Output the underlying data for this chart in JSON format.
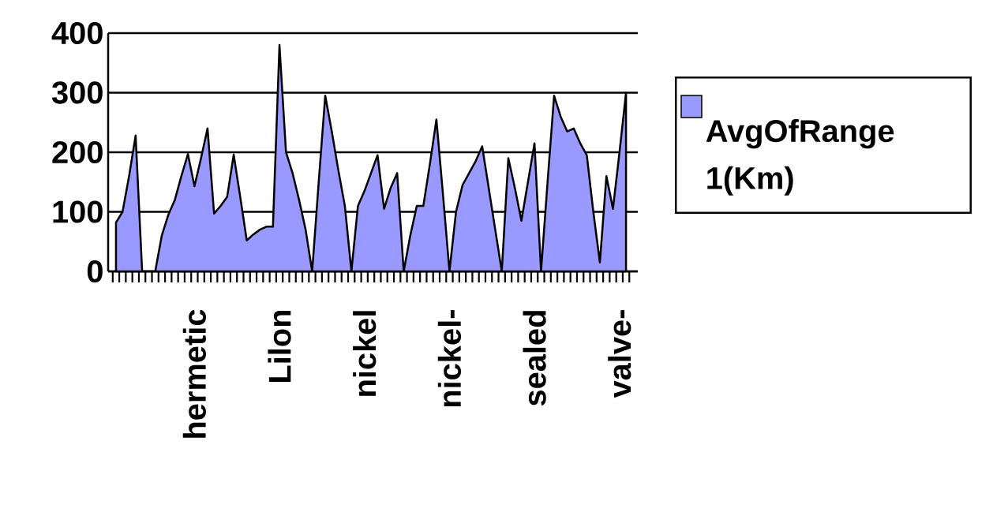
{
  "chart_data": {
    "type": "area",
    "categories": [
      null,
      null,
      null,
      null,
      null,
      null,
      null,
      null,
      null,
      null,
      null,
      null,
      "hermetic",
      null,
      null,
      null,
      null,
      null,
      null,
      null,
      null,
      null,
      null,
      null,
      null,
      "Lilon",
      null,
      null,
      null,
      null,
      null,
      null,
      null,
      null,
      null,
      null,
      null,
      null,
      "nickel",
      null,
      null,
      null,
      null,
      null,
      null,
      null,
      null,
      null,
      null,
      null,
      null,
      "nickel-",
      null,
      null,
      null,
      null,
      null,
      null,
      null,
      null,
      null,
      null,
      null,
      null,
      "sealed",
      null,
      null,
      null,
      null,
      null,
      null,
      null,
      null,
      null,
      null,
      null,
      null,
      "valve-",
      null
    ],
    "series": [
      {
        "name": "AvgOfRange 1(Km)",
        "color": "#9999ff",
        "values": [
          82,
          100,
          160,
          228,
          0,
          0,
          0,
          60,
          95,
          120,
          160,
          197,
          143,
          190,
          240,
          97,
          110,
          125,
          196,
          125,
          52,
          62,
          70,
          75,
          75,
          380,
          200,
          165,
          120,
          70,
          0,
          150,
          295,
          235,
          170,
          110,
          0,
          110,
          135,
          165,
          195,
          105,
          140,
          165,
          0,
          60,
          110,
          110,
          180,
          255,
          130,
          0,
          100,
          145,
          165,
          185,
          210,
          140,
          70,
          0,
          190,
          140,
          85,
          150,
          215,
          0,
          150,
          295,
          260,
          235,
          240,
          215,
          195,
          100,
          15,
          160,
          105,
          200,
          300
        ]
      }
    ],
    "ylim": [
      0,
      400
    ],
    "yticks": [
      0,
      100,
      200,
      300,
      400
    ],
    "grid": "y",
    "legend": "right"
  }
}
